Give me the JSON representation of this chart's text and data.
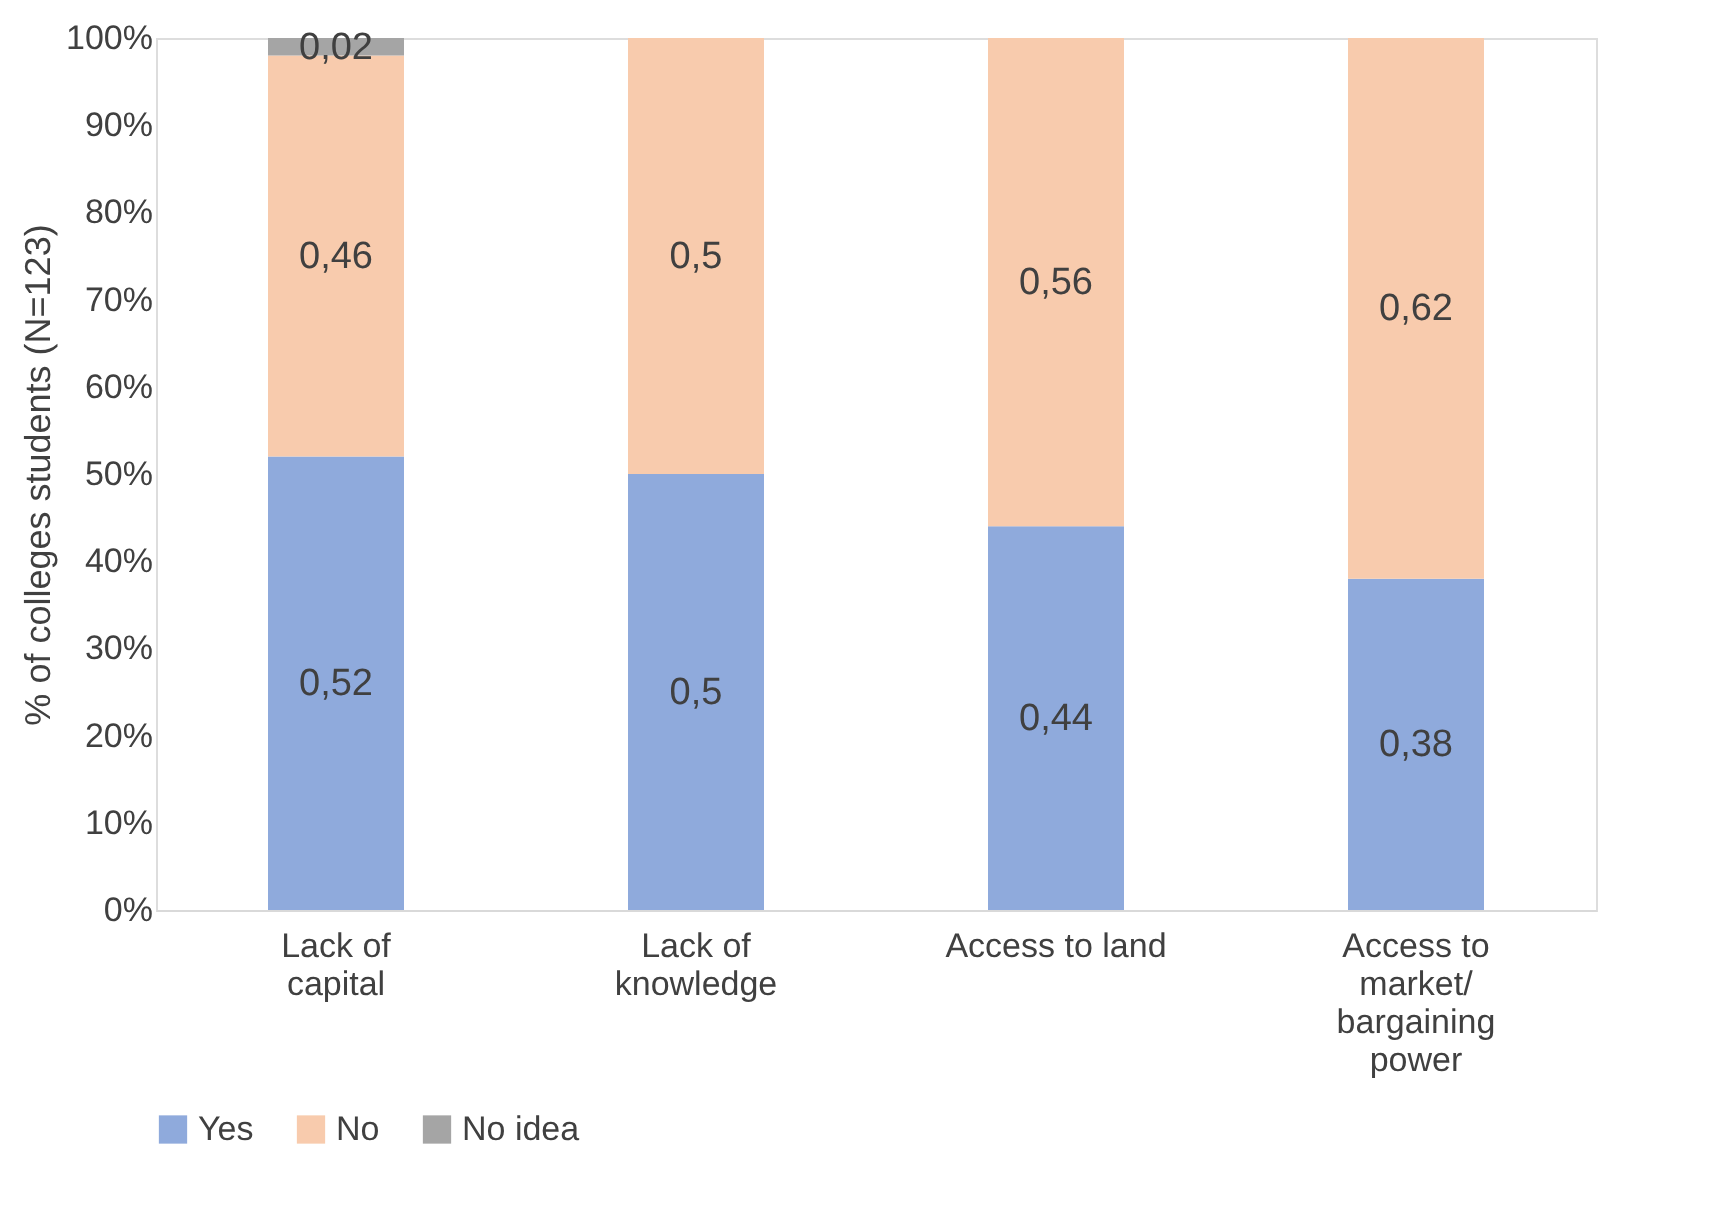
{
  "chart_data": {
    "type": "bar",
    "stacked": true,
    "ylabel": "% of colleges students (N=123)",
    "categories": [
      "Lack of capital",
      "Lack of knowledge",
      "Access to land",
      "Access to market/ bargaining power"
    ],
    "series": [
      {
        "name": "Yes",
        "color": "#8faadc",
        "values": [
          0.52,
          0.5,
          0.44,
          0.38
        ],
        "value_labels": [
          "0,52",
          "0,5",
          "0,44",
          "0,38"
        ]
      },
      {
        "name": "No",
        "color": "#f8cbad",
        "values": [
          0.46,
          0.5,
          0.56,
          0.62
        ],
        "value_labels": [
          "0,46",
          "0,5",
          "0,56",
          "0,62"
        ]
      },
      {
        "name": "No idea",
        "color": "#a5a5a5",
        "values": [
          0.02,
          null,
          null,
          null
        ],
        "value_labels": [
          "0,02",
          null,
          null,
          null
        ]
      }
    ],
    "ylim": [
      0,
      1
    ],
    "yticks": [
      {
        "value": 0,
        "label": "0%"
      },
      {
        "value": 0.1,
        "label": "10%"
      },
      {
        "value": 0.2,
        "label": "20%"
      },
      {
        "value": 0.3,
        "label": "30%"
      },
      {
        "value": 0.4,
        "label": "40%"
      },
      {
        "value": 0.5,
        "label": "50%"
      },
      {
        "value": 0.6,
        "label": "60%"
      },
      {
        "value": 0.7,
        "label": "70%"
      },
      {
        "value": 0.8,
        "label": "80%"
      },
      {
        "value": 0.9,
        "label": "90%"
      },
      {
        "value": 1,
        "label": "100%"
      }
    ],
    "grid": false,
    "legend": "bottom"
  }
}
